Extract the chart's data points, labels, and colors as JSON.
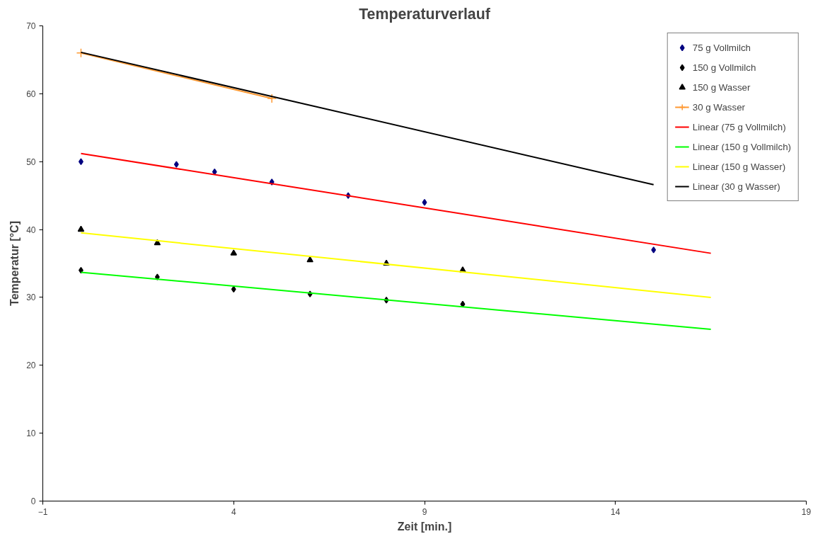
{
  "chart_data": {
    "type": "scatter",
    "title": "Temperaturverlauf",
    "xlabel": "Zeit [min.]",
    "ylabel": "Temperatur [°C]",
    "xlim": [
      -1,
      19
    ],
    "xticks": [
      -1,
      4,
      9,
      14,
      19
    ],
    "ylim": [
      0,
      70
    ],
    "yticks": [
      0,
      10,
      20,
      30,
      40,
      50,
      60,
      70
    ],
    "grid": false,
    "legend": "top right",
    "series": [
      {
        "name": "75 g Vollmilch",
        "marker": "diamond",
        "color": "#000080",
        "x": [
          0,
          2.5,
          3.5,
          5,
          7,
          9,
          15
        ],
        "values": [
          50,
          49.6,
          48.5,
          47,
          45,
          44,
          37
        ]
      },
      {
        "name": "150 g Vollmilch",
        "marker": "diamond",
        "color": "#000000",
        "x": [
          0,
          2,
          4,
          6,
          8,
          10
        ],
        "values": [
          34,
          33,
          31.2,
          30.5,
          29.6,
          29
        ]
      },
      {
        "name": "150 g Wasser",
        "marker": "triangle",
        "color": "#000000",
        "x": [
          0,
          2,
          4,
          6,
          8,
          10
        ],
        "values": [
          40,
          38,
          36.5,
          35.5,
          35,
          34
        ]
      },
      {
        "name": "30 g Wasser",
        "type": "line",
        "marker": "cross",
        "color": "#ff9933",
        "x": [
          0,
          5
        ],
        "values": [
          66,
          59.3
        ]
      },
      {
        "name": "Linear (75 g Vollmilch)",
        "type": "line",
        "marker": "none",
        "color": "#ff0000",
        "x": [
          0,
          16.5
        ],
        "values": [
          51.2,
          36.5
        ]
      },
      {
        "name": "Linear (150 g Vollmilch)",
        "type": "line",
        "marker": "none",
        "color": "#00ff00",
        "x": [
          0,
          16.5
        ],
        "values": [
          33.7,
          25.3
        ]
      },
      {
        "name": "Linear (150 g Wasser)",
        "type": "line",
        "marker": "none",
        "color": "#ffff00",
        "x": [
          0,
          16.5
        ],
        "values": [
          39.5,
          30
        ]
      },
      {
        "name": "Linear (30 g Wasser)",
        "type": "line",
        "marker": "none",
        "color": "#000000",
        "x": [
          0,
          15
        ],
        "values": [
          66.1,
          46.6
        ]
      }
    ]
  }
}
